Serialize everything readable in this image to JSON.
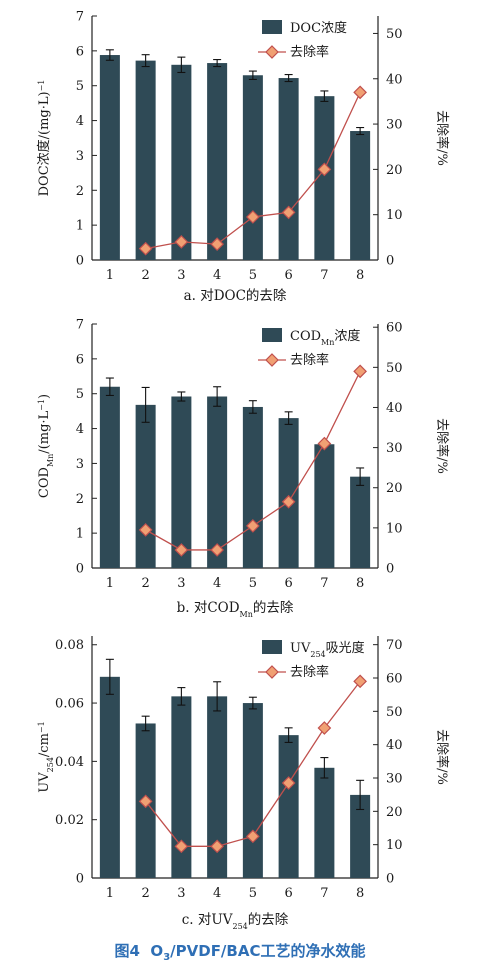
{
  "figure": {
    "label": "图4",
    "caption_pre": "O",
    "caption_sub": "3",
    "caption_post": "/PVDF/BAC工艺的净水效能"
  },
  "chart_data": [
    {
      "type": "bar",
      "panel": "a",
      "categories": [
        "1",
        "2",
        "3",
        "4",
        "5",
        "6",
        "7",
        "8"
      ],
      "series": [
        {
          "name": "DOC浓度",
          "kind": "bar",
          "axis": "left",
          "values": [
            5.88,
            5.72,
            5.6,
            5.65,
            5.3,
            5.22,
            4.7,
            3.7
          ],
          "errors": [
            0.15,
            0.17,
            0.22,
            0.1,
            0.12,
            0.1,
            0.15,
            0.1
          ]
        },
        {
          "name": "去除率",
          "kind": "line",
          "axis": "right",
          "values": [
            null,
            2.5,
            4.0,
            3.5,
            9.5,
            10.5,
            20.0,
            37.0
          ]
        }
      ],
      "ylabel_pre": "DOC浓度/(mg·L",
      "ylabel_sup": "−1",
      "ylabel_post": ")",
      "y2label": "去除率/%",
      "ylim": [
        0,
        7
      ],
      "yticks": [
        "0",
        "1",
        "2",
        "3",
        "4",
        "5",
        "6",
        "7"
      ],
      "y2lim": [
        0,
        53.85
      ],
      "y2ticks": [
        "0",
        "10",
        "20",
        "30",
        "40",
        "50"
      ],
      "legend_bar": {
        "pre": "DOC浓度",
        "sub": "",
        "post": ""
      },
      "legend_line": "去除率",
      "caption": {
        "pre": "a. 对DOC的去除",
        "sub": "",
        "post": ""
      },
      "legend_position": "top-right"
    },
    {
      "type": "bar",
      "panel": "b",
      "categories": [
        "1",
        "2",
        "3",
        "4",
        "5",
        "6",
        "7",
        "8"
      ],
      "series": [
        {
          "name": "COD_Mn浓度",
          "kind": "bar",
          "axis": "left",
          "values": [
            5.2,
            4.68,
            4.92,
            4.92,
            4.62,
            4.3,
            3.55,
            2.62
          ],
          "errors": [
            0.25,
            0.5,
            0.13,
            0.28,
            0.18,
            0.18,
            0.05,
            0.25
          ]
        },
        {
          "name": "去除率",
          "kind": "line",
          "axis": "right",
          "values": [
            null,
            9.5,
            4.5,
            4.5,
            10.5,
            16.5,
            31.0,
            49.0
          ]
        }
      ],
      "ylabel_pre": "COD",
      "ylabel_sub": "Mn",
      "ylabel_post": "/(mg·L",
      "ylabel_sup": "−1",
      "ylabel_tail": ")",
      "y2label": "去除率/%",
      "ylim": [
        0,
        7
      ],
      "yticks": [
        "0",
        "1",
        "2",
        "3",
        "4",
        "5",
        "6",
        "7"
      ],
      "y2lim": [
        0,
        60.8
      ],
      "y2ticks": [
        "0",
        "10",
        "20",
        "30",
        "40",
        "50",
        "60"
      ],
      "legend_bar": {
        "pre": "COD",
        "sub": "Mn",
        "post": "浓度"
      },
      "legend_line": "去除率",
      "caption": {
        "pre": "b. 对COD",
        "sub": "Mn",
        "post": "的去除"
      },
      "legend_position": "top-right"
    },
    {
      "type": "bar",
      "panel": "c",
      "categories": [
        "1",
        "2",
        "3",
        "4",
        "5",
        "6",
        "7",
        "8"
      ],
      "series": [
        {
          "name": "UV254吸光度",
          "kind": "bar",
          "axis": "left",
          "values": [
            0.069,
            0.053,
            0.0623,
            0.0623,
            0.06,
            0.049,
            0.0378,
            0.0285
          ],
          "errors": [
            0.006,
            0.0025,
            0.003,
            0.005,
            0.002,
            0.0025,
            0.0035,
            0.005
          ]
        },
        {
          "name": "去除率",
          "kind": "line",
          "axis": "right",
          "values": [
            null,
            23.0,
            9.5,
            9.5,
            12.5,
            28.5,
            45.0,
            59.0
          ]
        }
      ],
      "ylabel_pre": "UV",
      "ylabel_sub": "254",
      "ylabel_post": "/cm",
      "ylabel_sup": "−1",
      "ylabel_tail": "",
      "y2label": "去除率/%",
      "ylim": [
        0,
        0.083
      ],
      "yticks": [
        "0",
        "0.02",
        "0.04",
        "0.06",
        "0.08"
      ],
      "ytick_values": [
        0,
        0.02,
        0.04,
        0.06,
        0.08
      ],
      "y2lim": [
        0,
        72.6
      ],
      "y2ticks": [
        "0",
        "10",
        "20",
        "30",
        "40",
        "50",
        "60",
        "70"
      ],
      "legend_bar": {
        "pre": "UV",
        "sub": "254",
        "post": "吸光度"
      },
      "legend_line": "去除率",
      "caption": {
        "pre": "c. 对UV",
        "sub": "254",
        "post": "的去除"
      },
      "legend_position": "top-right"
    }
  ],
  "colors": {
    "bar": "#2f4a56",
    "line": "#c0504d",
    "marker": "#f0a073",
    "marker_edge": "#c0504d"
  }
}
